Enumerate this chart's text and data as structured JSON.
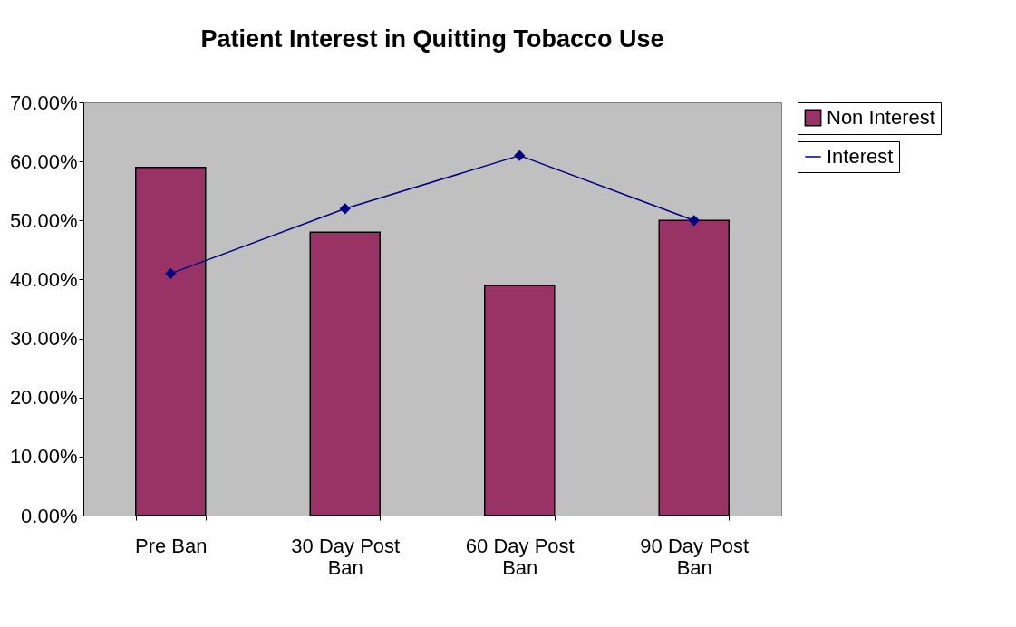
{
  "chart_data": {
    "type": "bar",
    "title": "Patient Interest in Quitting Tobacco Use",
    "categories": [
      "Pre Ban",
      "30 Day Post Ban",
      "60 Day Post Ban",
      "90 Day Post Ban"
    ],
    "series": [
      {
        "name": "Non Interest",
        "color": "#993366",
        "values": [
          59,
          48,
          39,
          50
        ]
      },
      {
        "name": "Interest",
        "type": "line",
        "color": "#000080",
        "values": [
          41,
          52,
          61,
          50
        ],
        "marker": "diamond",
        "line_style": "solid"
      }
    ],
    "ylim": [
      0,
      70
    ],
    "yticks": [
      {
        "value": 0,
        "label": "0.00%"
      },
      {
        "value": 10,
        "label": "10.00%"
      },
      {
        "value": 20,
        "label": "20.00%"
      },
      {
        "value": 30,
        "label": "30.00%"
      },
      {
        "value": 40,
        "label": "40.00%"
      },
      {
        "value": 50,
        "label": "50.00%"
      },
      {
        "value": 60,
        "label": "60.00%"
      },
      {
        "value": 70,
        "label": "70.00%"
      }
    ],
    "grid": false,
    "legend": "right"
  }
}
